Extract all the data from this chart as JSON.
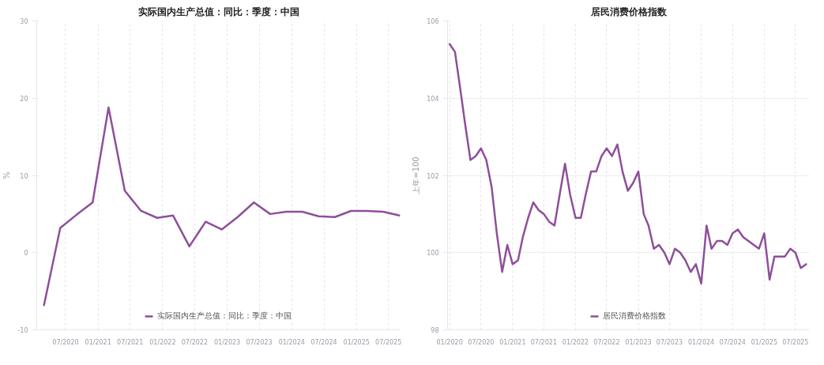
{
  "chart_data": [
    {
      "type": "line",
      "title": "实际国内生产总值：同比：季度：中国",
      "ylabel": "%",
      "x": [
        "2020-03",
        "2020-06",
        "2020-09",
        "2020-12",
        "2021-03",
        "2021-06",
        "2021-09",
        "2021-12",
        "2022-03",
        "2022-06",
        "2022-09",
        "2022-12",
        "2023-03",
        "2023-06",
        "2023-09",
        "2023-12",
        "2024-03",
        "2024-06",
        "2024-09",
        "2024-12",
        "2025-03",
        "2025-06",
        "2025-09"
      ],
      "series": [
        {
          "name": "实际国内生产总值：同比：季度：中国",
          "color": "#8e4f9a",
          "values": [
            -6.8,
            3.2,
            4.9,
            6.5,
            18.8,
            8.0,
            5.4,
            4.5,
            4.8,
            0.8,
            4.0,
            3.0,
            4.6,
            6.5,
            5.0,
            5.3,
            5.3,
            4.7,
            4.6,
            5.4,
            5.4,
            5.3,
            4.8
          ]
        }
      ],
      "xlim": [
        "2020-01-20",
        "2025-09-05"
      ],
      "ylim": [
        -10,
        30
      ],
      "yticks": [
        -10,
        0,
        10,
        20,
        30
      ],
      "xticks": [
        {
          "value": "2020-07",
          "label": "07/2020"
        },
        {
          "value": "2021-01",
          "label": "01/2021"
        },
        {
          "value": "2021-07",
          "label": "07/2021"
        },
        {
          "value": "2022-01",
          "label": "01/2022"
        },
        {
          "value": "2022-07",
          "label": "07/2022"
        },
        {
          "value": "2023-01",
          "label": "01/2023"
        },
        {
          "value": "2023-07",
          "label": "07/2023"
        },
        {
          "value": "2024-01",
          "label": "01/2024"
        },
        {
          "value": "2024-07",
          "label": "07/2024"
        },
        {
          "value": "2025-01",
          "label": "01/2025"
        },
        {
          "value": "2025-07",
          "label": "07/2025"
        }
      ],
      "grid": "x",
      "legend": "bottom",
      "line_style": "solid"
    },
    {
      "type": "line",
      "title": "居民消费价格指数",
      "ylabel": "上年=100",
      "x": [
        "2020-01",
        "2020-02",
        "2020-03",
        "2020-04",
        "2020-05",
        "2020-06",
        "2020-07",
        "2020-08",
        "2020-09",
        "2020-10",
        "2020-11",
        "2020-12",
        "2021-01",
        "2021-02",
        "2021-03",
        "2021-04",
        "2021-05",
        "2021-06",
        "2021-07",
        "2021-08",
        "2021-09",
        "2021-10",
        "2021-11",
        "2021-12",
        "2022-01",
        "2022-02",
        "2022-03",
        "2022-04",
        "2022-05",
        "2022-06",
        "2022-07",
        "2022-08",
        "2022-09",
        "2022-10",
        "2022-11",
        "2022-12",
        "2023-01",
        "2023-02",
        "2023-03",
        "2023-04",
        "2023-05",
        "2023-06",
        "2023-07",
        "2023-08",
        "2023-09",
        "2023-10",
        "2023-11",
        "2023-12",
        "2024-01",
        "2024-02",
        "2024-03",
        "2024-04",
        "2024-05",
        "2024-06",
        "2024-07",
        "2024-08",
        "2024-09",
        "2024-10",
        "2024-11",
        "2024-12",
        "2025-01",
        "2025-02",
        "2025-03",
        "2025-04",
        "2025-05",
        "2025-06",
        "2025-07",
        "2025-08",
        "2025-09"
      ],
      "series": [
        {
          "name": "居民消费价格指数",
          "color": "#8e4f9a",
          "values": [
            105.4,
            105.2,
            104.3,
            103.3,
            102.4,
            102.5,
            102.7,
            102.4,
            101.7,
            100.5,
            99.5,
            100.2,
            99.7,
            99.8,
            100.4,
            100.9,
            101.3,
            101.1,
            101.0,
            100.8,
            100.7,
            101.5,
            102.3,
            101.5,
            100.9,
            100.9,
            101.5,
            102.1,
            102.1,
            102.5,
            102.7,
            102.5,
            102.8,
            102.1,
            101.6,
            101.8,
            102.1,
            101.0,
            100.7,
            100.1,
            100.2,
            100.0,
            99.7,
            100.1,
            100.0,
            99.8,
            99.5,
            99.7,
            99.2,
            100.7,
            100.1,
            100.3,
            100.3,
            100.2,
            100.5,
            100.6,
            100.4,
            100.3,
            100.2,
            100.1,
            100.5,
            99.3,
            99.9,
            99.9,
            99.9,
            100.1,
            100.0,
            99.6,
            99.7
          ]
        }
      ],
      "xlim": [
        "2019-12-20",
        "2025-09-20"
      ],
      "ylim": [
        98,
        106
      ],
      "yticks": [
        98,
        100,
        102,
        104,
        106
      ],
      "xticks": [
        {
          "value": "2020-01",
          "label": "01/2020"
        },
        {
          "value": "2020-07",
          "label": "07/2020"
        },
        {
          "value": "2021-01",
          "label": "01/2021"
        },
        {
          "value": "2021-07",
          "label": "07/2021"
        },
        {
          "value": "2022-01",
          "label": "01/2022"
        },
        {
          "value": "2022-07",
          "label": "07/2022"
        },
        {
          "value": "2023-01",
          "label": "01/2023"
        },
        {
          "value": "2023-07",
          "label": "07/2023"
        },
        {
          "value": "2024-01",
          "label": "01/2024"
        },
        {
          "value": "2024-07",
          "label": "07/2024"
        },
        {
          "value": "2025-01",
          "label": "01/2025"
        },
        {
          "value": "2025-07",
          "label": "07/2025"
        }
      ],
      "grid": true,
      "legend": "bottom",
      "line_style": "solid"
    }
  ]
}
